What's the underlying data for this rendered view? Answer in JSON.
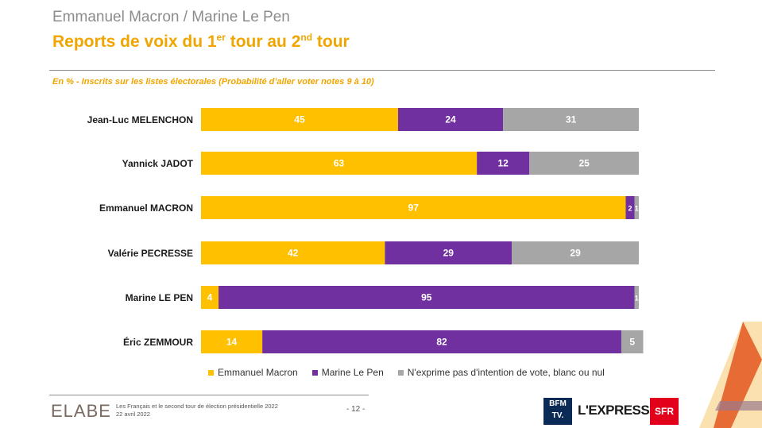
{
  "header": {
    "title": "Emmanuel Macron / Marine Le Pen",
    "subtitle_pre": "Reports de voix du 1",
    "subtitle_sup1": "er",
    "subtitle_mid": " tour au 2",
    "subtitle_sup2": "nd",
    "subtitle_post": " tour",
    "note": "En % - Inscrits sur les listes électorales (Probabilité d’aller voter notes 9 à 10)"
  },
  "colors": {
    "macron": "#ffc000",
    "lepen": "#7030a0",
    "other": "#a6a6a6",
    "accent": "#f0a500"
  },
  "chart_data": {
    "type": "bar",
    "orientation": "horizontal",
    "stacked": true,
    "categories": [
      "Jean-Luc MELENCHON",
      "Yannick JADOT",
      "Emmanuel MACRON",
      "Valérie PECRESSE",
      "Marine LE PEN",
      "Éric ZEMMOUR"
    ],
    "series": [
      {
        "name": "Emmanuel Macron",
        "values": [
          45,
          63,
          97,
          42,
          4,
          14
        ]
      },
      {
        "name": "Marine Le Pen",
        "values": [
          24,
          12,
          2,
          29,
          95,
          82
        ]
      },
      {
        "name": "N'exprime pas d'intention de vote, blanc ou nul",
        "values": [
          31,
          25,
          1,
          29,
          1,
          5
        ]
      }
    ],
    "xlim": [
      0,
      100
    ],
    "title": "Reports de voix du 1er tour au 2nd tour",
    "legend_position": "bottom"
  },
  "footer": {
    "brand": "ELABE",
    "line1": "Les Français et le second tour de élection présidentielle 2022",
    "line2": "22 avril 2022",
    "page": "- 12 -",
    "logo_bfm_1": "BFM",
    "logo_bfm_2": "TV.",
    "logo_express": "L'EXPRESS",
    "logo_sfr": "SFR"
  }
}
